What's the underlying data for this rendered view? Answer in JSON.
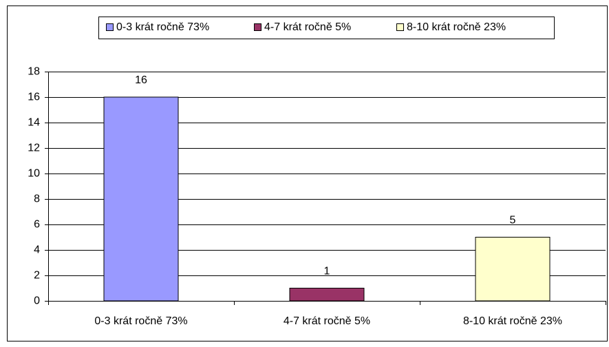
{
  "chart_data": {
    "type": "bar",
    "categories": [
      "0-3 krát ročně 73%",
      "4-7 krát ročně 5%",
      "8-10 krát ročně 23%"
    ],
    "values": [
      16,
      1,
      5
    ],
    "colors": [
      "#9999ff",
      "#993366",
      "#ffffcc"
    ],
    "ylim": [
      0,
      18
    ],
    "yticks": [
      0,
      2,
      4,
      6,
      8,
      10,
      12,
      14,
      16,
      18
    ],
    "grid": true,
    "legend": "top"
  }
}
